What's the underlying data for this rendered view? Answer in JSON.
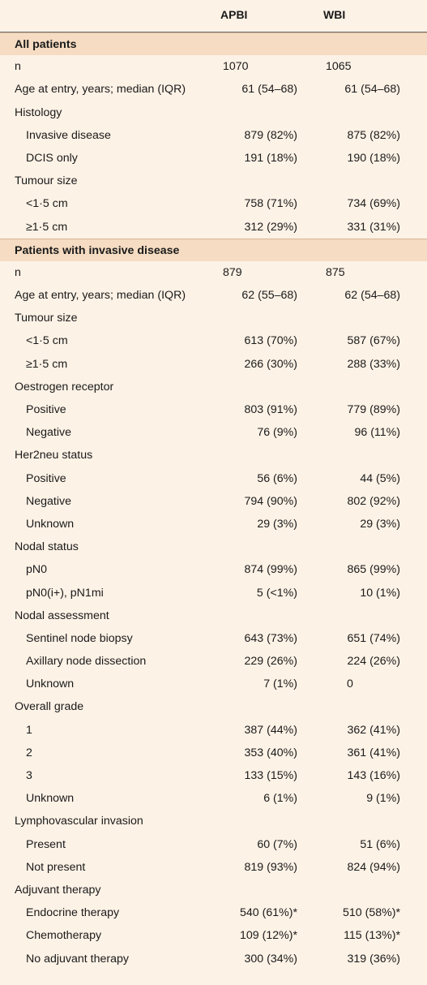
{
  "header": {
    "apbi_label": "APBI",
    "wbi_label": "WBI"
  },
  "sections": [
    {
      "title": "All patients",
      "rows": [
        {
          "label": "n",
          "apbi": "1070",
          "wbi": "1065",
          "indent": false,
          "align": "left"
        },
        {
          "label": "Age at entry, years; median (IQR)",
          "apbi": "61 (54–68)",
          "wbi": "61 (54–68)",
          "indent": false
        },
        {
          "label": "Histology",
          "apbi": "",
          "wbi": "",
          "indent": false
        },
        {
          "label": "Invasive disease",
          "apbi": "879 (82%)",
          "wbi": "875 (82%)",
          "indent": true
        },
        {
          "label": "DCIS only",
          "apbi": "191 (18%)",
          "wbi": "190 (18%)",
          "indent": true
        },
        {
          "label": "Tumour size",
          "apbi": "",
          "wbi": "",
          "indent": false
        },
        {
          "label": "<1·5 cm",
          "apbi": "758 (71%)",
          "wbi": "734 (69%)",
          "indent": true
        },
        {
          "label": "≥1·5 cm",
          "apbi": "312 (29%)",
          "wbi": "331 (31%)",
          "indent": true
        }
      ]
    },
    {
      "title": "Patients with invasive disease",
      "rows": [
        {
          "label": "n",
          "apbi": "879",
          "wbi": "875",
          "indent": false,
          "align": "left"
        },
        {
          "label": "Age at entry, years; median (IQR)",
          "apbi": "62 (55–68)",
          "wbi": "62 (54–68)",
          "indent": false
        },
        {
          "label": "Tumour size",
          "apbi": "",
          "wbi": "",
          "indent": false
        },
        {
          "label": "<1·5 cm",
          "apbi": "613 (70%)",
          "wbi": "587 (67%)",
          "indent": true
        },
        {
          "label": "≥1·5 cm",
          "apbi": "266 (30%)",
          "wbi": "288 (33%)",
          "indent": true
        },
        {
          "label": "Oestrogen receptor",
          "apbi": "",
          "wbi": "",
          "indent": false
        },
        {
          "label": "Positive",
          "apbi": "803 (91%)",
          "wbi": "779 (89%)",
          "indent": true
        },
        {
          "label": "Negative",
          "apbi": "76 (9%)",
          "wbi": "96 (11%)",
          "indent": true
        },
        {
          "label": "Her2neu status",
          "apbi": "",
          "wbi": "",
          "indent": false
        },
        {
          "label": "Positive",
          "apbi": "56 (6%)",
          "wbi": "44 (5%)",
          "indent": true
        },
        {
          "label": "Negative",
          "apbi": "794 (90%)",
          "wbi": "802 (92%)",
          "indent": true
        },
        {
          "label": "Unknown",
          "apbi": "29 (3%)",
          "wbi": "29 (3%)",
          "indent": true
        },
        {
          "label": "Nodal status",
          "apbi": "",
          "wbi": "",
          "indent": false
        },
        {
          "label": "pN0",
          "apbi": "874 (99%)",
          "wbi": "865 (99%)",
          "indent": true
        },
        {
          "label": "pN0(i+), pN1mi",
          "apbi": "5 (<1%)",
          "wbi": "10 (1%)",
          "indent": true
        },
        {
          "label": "Nodal assessment",
          "apbi": "",
          "wbi": "",
          "indent": false
        },
        {
          "label": "Sentinel node biopsy",
          "apbi": "643 (73%)",
          "wbi": "651 (74%)",
          "indent": true
        },
        {
          "label": "Axillary node dissection",
          "apbi": "229 (26%)",
          "wbi": "224 (26%)",
          "indent": true
        },
        {
          "label": "Unknown",
          "apbi": "7 (1%)",
          "wbi": "0",
          "indent": true,
          "wbi_zero": true
        },
        {
          "label": "Overall grade",
          "apbi": "",
          "wbi": "",
          "indent": false
        },
        {
          "label": "1",
          "apbi": "387 (44%)",
          "wbi": "362 (41%)",
          "indent": true
        },
        {
          "label": "2",
          "apbi": "353 (40%)",
          "wbi": "361 (41%)",
          "indent": true
        },
        {
          "label": "3",
          "apbi": "133 (15%)",
          "wbi": "143 (16%)",
          "indent": true
        },
        {
          "label": "Unknown",
          "apbi": "6 (1%)",
          "wbi": "9 (1%)",
          "indent": true
        },
        {
          "label": "Lymphovascular invasion",
          "apbi": "",
          "wbi": "",
          "indent": false
        },
        {
          "label": "Present",
          "apbi": "60 (7%)",
          "wbi": "51 (6%)",
          "indent": true
        },
        {
          "label": "Not present",
          "apbi": "819 (93%)",
          "wbi": "824 (94%)",
          "indent": true
        },
        {
          "label": "Adjuvant therapy",
          "apbi": "",
          "wbi": "",
          "indent": false
        },
        {
          "label": "Endocrine therapy",
          "apbi": "540 (61%)*",
          "wbi": "510 (58%)*",
          "indent": true
        },
        {
          "label": "Chemotherapy",
          "apbi": "109 (12%)*",
          "wbi": "115 (13%)*",
          "indent": true
        },
        {
          "label": "No adjuvant therapy",
          "apbi": "300 (34%)",
          "wbi": "319 (36%)",
          "indent": true
        }
      ]
    }
  ]
}
